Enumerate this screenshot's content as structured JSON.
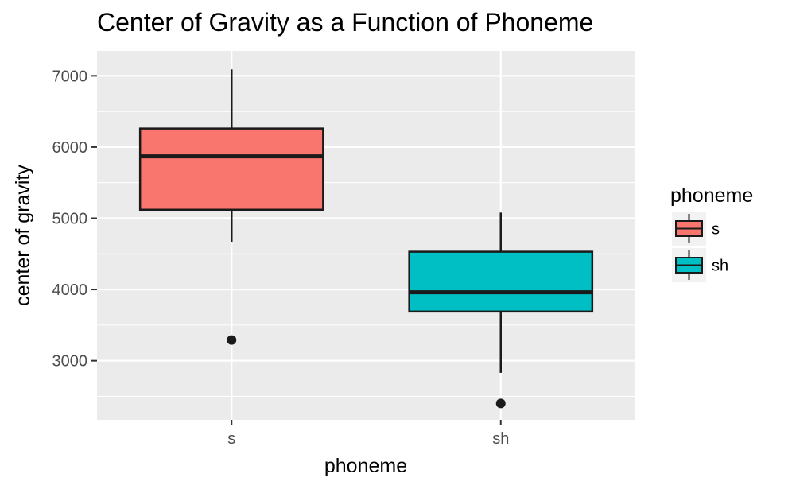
{
  "chart_data": {
    "type": "boxplot",
    "title": "Center of Gravity as a Function of Phoneme",
    "xlabel": "phoneme",
    "ylabel": "center of gravity",
    "categories": [
      "s",
      "sh"
    ],
    "y_ticks": [
      "3000",
      "4000",
      "5000",
      "6000",
      "7000"
    ],
    "ylim": [
      2170,
      7350
    ],
    "grid": true,
    "legend": {
      "title": "phoneme",
      "position": "right",
      "entries": [
        "s",
        "sh"
      ]
    },
    "series": [
      {
        "category": "s",
        "color": "#F8766D",
        "whisker_low": 4670,
        "q1": 5120,
        "median": 5870,
        "q3": 6260,
        "whisker_high": 7090,
        "outliers": [
          3290
        ]
      },
      {
        "category": "sh",
        "color": "#00BFC4",
        "whisker_low": 2830,
        "q1": 3690,
        "median": 3960,
        "q3": 4530,
        "whisker_high": 5080,
        "outliers": [
          2400
        ]
      }
    ]
  }
}
